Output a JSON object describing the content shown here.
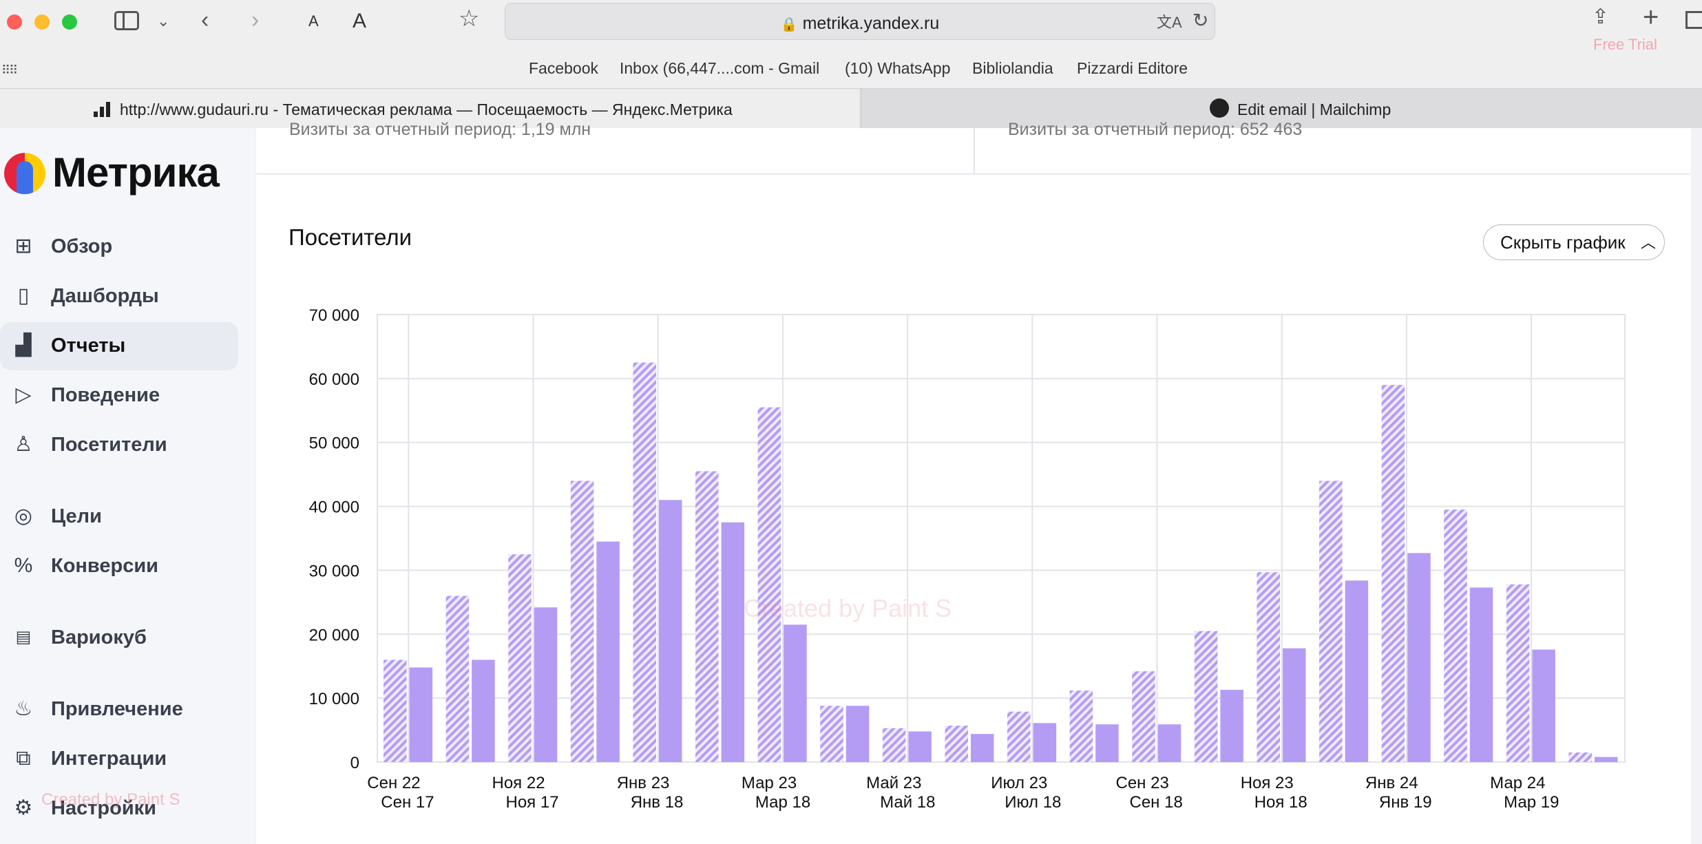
{
  "browser": {
    "url": "metrika.yandex.ru",
    "extension_label": "Free Trial",
    "bookmarks": [
      "Facebook",
      "Inbox (66,447....com - Gmail",
      "(10) WhatsApp",
      "Bibliolandia",
      "Pizzardi Editore"
    ],
    "tabs": [
      {
        "title": "http://www.gudauri.ru - Тематическая реклама — Посещаемость — Яндекс.Метрика",
        "active": true
      },
      {
        "title": "Edit email | Mailchimp",
        "active": false
      }
    ]
  },
  "sidebar": {
    "logo_text": "Метрика",
    "items": [
      {
        "label": "Обзор",
        "icon": "grid-icon"
      },
      {
        "label": "Дашборды",
        "icon": "dashboards-icon"
      },
      {
        "label": "Отчеты",
        "icon": "bar-chart-icon",
        "active": true
      },
      {
        "label": "Поведение",
        "icon": "play-icon"
      },
      {
        "label": "Посетители",
        "icon": "user-icon"
      },
      {
        "label": "Цели",
        "icon": "target-icon"
      },
      {
        "label": "Конверсии",
        "icon": "percent-icon"
      },
      {
        "label": "Вариокуб",
        "icon": "variocube-icon"
      },
      {
        "label": "Привлечение",
        "icon": "flame-icon"
      },
      {
        "label": "Интеграции",
        "icon": "puzzle-icon"
      },
      {
        "label": "Настройки",
        "icon": "gear-icon"
      }
    ]
  },
  "summary": {
    "left_text": "Визиты за отчетный период: 1,19 млн",
    "right_text": "Визиты за отчетный период: 652 463"
  },
  "chart_section": {
    "title": "Посетители",
    "hide_button_label": "Скрыть график"
  },
  "watermark": "Created by Paint S",
  "colors": {
    "bar": "#b49cf5",
    "bar_hatch": "#b49cf5",
    "grid": "#e2e2e8"
  },
  "chart_data": {
    "type": "bar",
    "title": "Посетители",
    "ylim": [
      0,
      70000
    ],
    "yticks": [
      "0",
      "10 000",
      "20 000",
      "30 000",
      "40 000",
      "50 000",
      "60 000",
      "70 000"
    ],
    "grid": true,
    "tick_labels_top": [
      "Сен 22",
      "Ноя 22",
      "Янв 23",
      "Мар 23",
      "Май 23",
      "Июл 23",
      "Сен 23",
      "Ноя 23",
      "Янв 24",
      "Мар 24"
    ],
    "tick_labels_bottom": [
      "Сен 17",
      "Ноя 17",
      "Янв 18",
      "Мар 18",
      "Май 18",
      "Июл 18",
      "Сен 18",
      "Ноя 18",
      "Янв 19",
      "Мар 19"
    ],
    "series": [
      {
        "style": "hatched",
        "values": [
          16000,
          26000,
          32500,
          44000,
          62500,
          45500,
          55500,
          8800,
          5300,
          5700,
          7900,
          11200,
          14200,
          20500,
          29700,
          44000,
          59000,
          39500,
          27800,
          1500
        ]
      },
      {
        "style": "solid",
        "values": [
          14800,
          16000,
          24200,
          34500,
          41000,
          37500,
          21500,
          8800,
          4800,
          4400,
          6100,
          5900,
          5900,
          11300,
          17800,
          28400,
          32700,
          27300,
          17600,
          800
        ]
      }
    ]
  }
}
